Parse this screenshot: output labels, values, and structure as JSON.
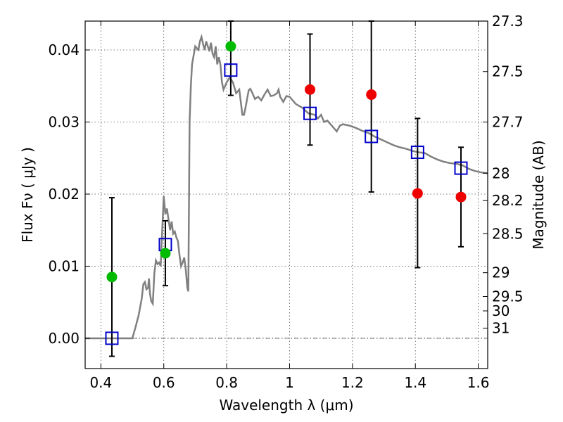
{
  "chart_data": {
    "type": "scatter",
    "xlabel": "Wavelength  λ (μm)",
    "ylabel": "Flux  Fν  ( μJy )",
    "ylabel_right": "Magnitude (AB)",
    "xlim": [
      0.35,
      1.63
    ],
    "ylim": [
      -0.0042,
      0.044
    ],
    "grid": true,
    "x_ticks": [
      0.4,
      0.6,
      0.8,
      1.0,
      1.2,
      1.4,
      1.6
    ],
    "x_tick_labels": [
      "0.4",
      "0.6",
      "0.8",
      "1",
      "1.2",
      "1.4",
      "1.6"
    ],
    "y_ticks": [
      0.0,
      0.01,
      0.02,
      0.03,
      0.04
    ],
    "y_tick_labels": [
      "0.00",
      "0.01",
      "0.02",
      "0.03",
      "0.04"
    ],
    "mag_ticks": [
      {
        "label": "27.3",
        "flux": 0.044
      },
      {
        "label": "27.5",
        "flux": 0.037
      },
      {
        "label": "27.7",
        "flux": 0.03
      },
      {
        "label": "28",
        "flux": 0.0229
      },
      {
        "label": "28.2",
        "flux": 0.0191
      },
      {
        "label": "28.5",
        "flux": 0.0145
      },
      {
        "label": "29",
        "flux": 0.0091
      },
      {
        "label": "29.5",
        "flux": 0.0058
      },
      {
        "label": "30",
        "flux": 0.0038
      },
      {
        "label": "31",
        "flux": 0.0014
      }
    ],
    "series": [
      {
        "kind": "line",
        "color": "#808080",
        "x": [
          0.35,
          0.5,
          0.51,
          0.52,
          0.53,
          0.535,
          0.54,
          0.545,
          0.55,
          0.553,
          0.556,
          0.56,
          0.565,
          0.57,
          0.575,
          0.58,
          0.585,
          0.59,
          0.595,
          0.6,
          0.605,
          0.61,
          0.615,
          0.62,
          0.625,
          0.63,
          0.635,
          0.64,
          0.645,
          0.65,
          0.655,
          0.66,
          0.665,
          0.67,
          0.675,
          0.678,
          0.682,
          0.686,
          0.69,
          0.7,
          0.71,
          0.715,
          0.72,
          0.725,
          0.73,
          0.735,
          0.74,
          0.745,
          0.75,
          0.755,
          0.76,
          0.765,
          0.77,
          0.775,
          0.78,
          0.785,
          0.79,
          0.8,
          0.81,
          0.82,
          0.83,
          0.84,
          0.85,
          0.855,
          0.86,
          0.865,
          0.87,
          0.875,
          0.88,
          0.89,
          0.9,
          0.91,
          0.92,
          0.93,
          0.94,
          0.95,
          0.96,
          0.965,
          0.97,
          0.98,
          0.99,
          1.0,
          1.02,
          1.04,
          1.06,
          1.08,
          1.09,
          1.1,
          1.11,
          1.12,
          1.13,
          1.15,
          1.16,
          1.17,
          1.19,
          1.21,
          1.23,
          1.25,
          1.27,
          1.29,
          1.31,
          1.33,
          1.35,
          1.37,
          1.39,
          1.41,
          1.43,
          1.45,
          1.47,
          1.49,
          1.51,
          1.53,
          1.55,
          1.57,
          1.59,
          1.61,
          1.63
        ],
        "y": [
          0.0,
          0.0,
          0.0015,
          0.0032,
          0.0055,
          0.0075,
          0.0078,
          0.0068,
          0.007,
          0.0083,
          0.0062,
          0.0052,
          0.0048,
          0.009,
          0.0108,
          0.0103,
          0.0105,
          0.01,
          0.015,
          0.0197,
          0.0172,
          0.018,
          0.0165,
          0.015,
          0.0162,
          0.0145,
          0.0148,
          0.014,
          0.0135,
          0.0115,
          0.01,
          0.0105,
          0.0112,
          0.0095,
          0.007,
          0.0065,
          0.03,
          0.035,
          0.038,
          0.0405,
          0.04,
          0.0412,
          0.0418,
          0.0408,
          0.04,
          0.0412,
          0.0405,
          0.0398,
          0.041,
          0.0395,
          0.039,
          0.0405,
          0.038,
          0.039,
          0.038,
          0.0355,
          0.0345,
          0.0355,
          0.0362,
          0.0355,
          0.034,
          0.0345,
          0.031,
          0.031,
          0.032,
          0.0332,
          0.0344,
          0.0346,
          0.0342,
          0.0332,
          0.0335,
          0.033,
          0.0338,
          0.0345,
          0.0336,
          0.0337,
          0.034,
          0.0345,
          0.0335,
          0.0328,
          0.0336,
          0.0335,
          0.0325,
          0.032,
          0.0312,
          0.031,
          0.0305,
          0.031,
          0.03,
          0.0302,
          0.0297,
          0.0287,
          0.0295,
          0.0297,
          0.0295,
          0.0292,
          0.0288,
          0.0285,
          0.028,
          0.0276,
          0.0272,
          0.0268,
          0.0265,
          0.0263,
          0.026,
          0.0258,
          0.0257,
          0.0252,
          0.0248,
          0.0245,
          0.0243,
          0.0242,
          0.024,
          0.0235,
          0.0232,
          0.023,
          0.0229
        ]
      },
      {
        "kind": "errorbar",
        "color": "#000000",
        "x": [
          0.435,
          0.605,
          0.813,
          1.065,
          1.26,
          1.407,
          1.545
        ],
        "y": [
          0.0,
          0.0118,
          0.037,
          0.0345,
          0.028,
          0.0201,
          0.0196
        ],
        "ylow": [
          -0.0025,
          0.0073,
          0.0337,
          0.0268,
          0.0203,
          0.0098,
          0.0127
        ],
        "yhigh": [
          0.0195,
          0.0163,
          0.044,
          0.0422,
          0.044,
          0.0305,
          0.0265
        ]
      },
      {
        "kind": "square",
        "color": "#0000cc",
        "x": [
          0.435,
          0.605,
          0.813,
          1.065,
          1.26,
          1.407,
          1.545
        ],
        "y": [
          0.0,
          0.013,
          0.0372,
          0.0312,
          0.028,
          0.0258,
          0.0236
        ]
      },
      {
        "kind": "dot",
        "color": "#00bb00",
        "x": [
          0.435,
          0.605,
          0.813
        ],
        "y": [
          0.0085,
          0.0118,
          0.0405
        ]
      },
      {
        "kind": "dot",
        "color": "#ee0000",
        "x": [
          1.065,
          1.26,
          1.407,
          1.545
        ],
        "y": [
          0.0345,
          0.0338,
          0.0201,
          0.0196
        ]
      }
    ]
  }
}
